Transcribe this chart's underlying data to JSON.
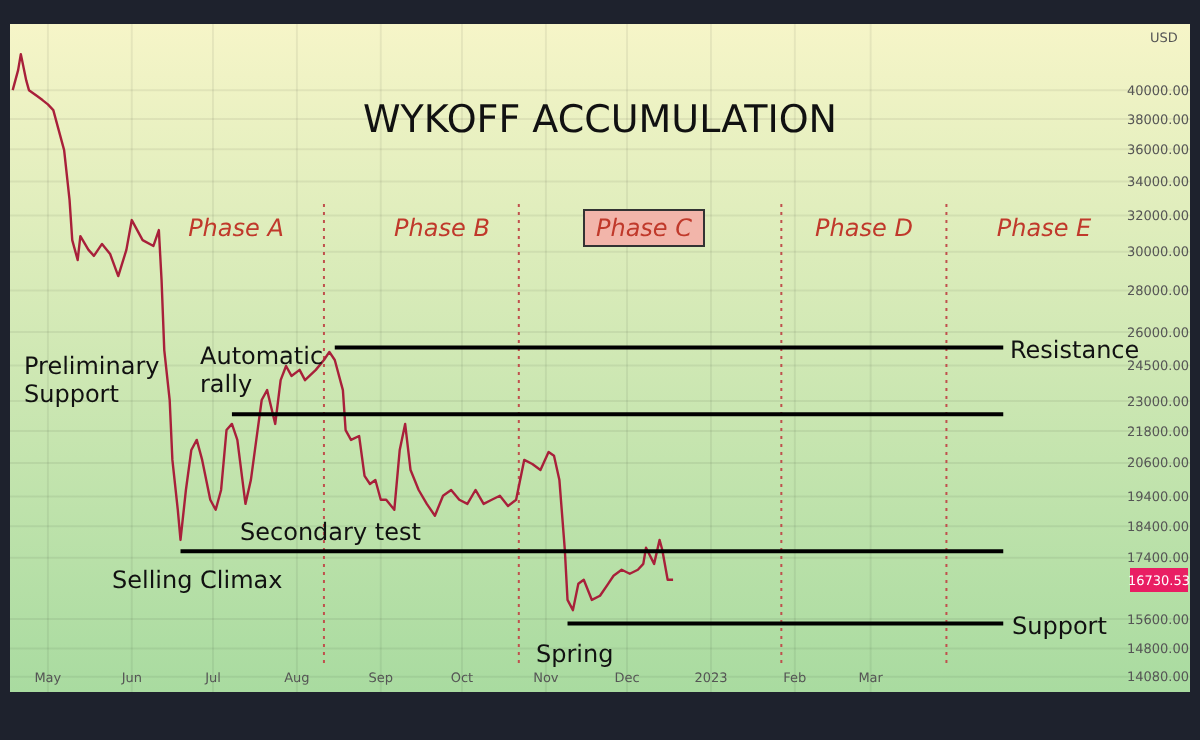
{
  "chart_data": {
    "type": "line",
    "title": "WYKOFF ACCUMULATION",
    "ylabel": "USD",
    "log": true,
    "grid": true,
    "xlim": [
      "2022-04-17",
      "2023-06-27"
    ],
    "ylim": [
      13700,
      45000
    ],
    "xticks": [
      {
        "value": "2022-05-01",
        "label": "May"
      },
      {
        "value": "2022-06-01",
        "label": "Jun"
      },
      {
        "value": "2022-07-01",
        "label": "Jul"
      },
      {
        "value": "2022-08-01",
        "label": "Aug"
      },
      {
        "value": "2022-09-01",
        "label": "Sep"
      },
      {
        "value": "2022-10-01",
        "label": "Oct"
      },
      {
        "value": "2022-11-01",
        "label": "Nov"
      },
      {
        "value": "2022-12-01",
        "label": "Dec"
      },
      {
        "value": "2023-01-01",
        "label": "2023"
      },
      {
        "value": "2023-02-01",
        "label": "Feb"
      },
      {
        "value": "2023-03-01",
        "label": "Mar"
      }
    ],
    "yticks": [
      {
        "value": 40000,
        "label": "40000.00"
      },
      {
        "value": 38000,
        "label": "38000.00"
      },
      {
        "value": 36000,
        "label": "36000.00"
      },
      {
        "value": 34000,
        "label": "34000.00"
      },
      {
        "value": 32000,
        "label": "32000.00"
      },
      {
        "value": 30000,
        "label": "30000.00"
      },
      {
        "value": 28000,
        "label": "28000.00"
      },
      {
        "value": 26000,
        "label": "26000.00"
      },
      {
        "value": 24500,
        "label": "24500.00"
      },
      {
        "value": 23000,
        "label": "23000.00"
      },
      {
        "value": 21800,
        "label": "21800.00"
      },
      {
        "value": 20600,
        "label": "20600.00"
      },
      {
        "value": 19400,
        "label": "19400.00"
      },
      {
        "value": 18400,
        "label": "18400.00"
      },
      {
        "value": 17400,
        "label": "17400.00"
      },
      {
        "value": 15600,
        "label": "15600.00"
      },
      {
        "value": 14800,
        "label": "14800.00"
      },
      {
        "value": 14080,
        "label": "14080.00"
      }
    ],
    "series": [
      {
        "color": "#a8203a",
        "x": [
          "2022-04-18",
          "2022-04-20",
          "2022-04-21",
          "2022-04-23",
          "2022-04-24",
          "2022-04-27",
          "2022-04-29",
          "2022-05-01",
          "2022-05-03",
          "2022-05-05",
          "2022-05-07",
          "2022-05-09",
          "2022-05-10",
          "2022-05-12",
          "2022-05-13",
          "2022-05-16",
          "2022-05-18",
          "2022-05-21",
          "2022-05-24",
          "2022-05-27",
          "2022-05-30",
          "2022-06-01",
          "2022-06-05",
          "2022-06-09",
          "2022-06-11",
          "2022-06-12",
          "2022-06-13",
          "2022-06-15",
          "2022-06-16",
          "2022-06-18",
          "2022-06-19",
          "2022-06-21",
          "2022-06-23",
          "2022-06-25",
          "2022-06-27",
          "2022-06-30",
          "2022-07-02",
          "2022-07-04",
          "2022-07-06",
          "2022-07-08",
          "2022-07-10",
          "2022-07-13",
          "2022-07-15",
          "2022-07-17",
          "2022-07-19",
          "2022-07-21",
          "2022-07-24",
          "2022-07-26",
          "2022-07-28",
          "2022-07-30",
          "2022-08-02",
          "2022-08-04",
          "2022-08-08",
          "2022-08-11",
          "2022-08-13",
          "2022-08-15",
          "2022-08-18",
          "2022-08-19",
          "2022-08-21",
          "2022-08-24",
          "2022-08-26",
          "2022-08-28",
          "2022-08-30",
          "2022-09-01",
          "2022-09-03",
          "2022-09-06",
          "2022-09-08",
          "2022-09-10",
          "2022-09-12",
          "2022-09-15",
          "2022-09-18",
          "2022-09-21",
          "2022-09-24",
          "2022-09-27",
          "2022-09-30",
          "2022-10-03",
          "2022-10-06",
          "2022-10-09",
          "2022-10-12",
          "2022-10-15",
          "2022-10-18",
          "2022-10-21",
          "2022-10-24",
          "2022-10-27",
          "2022-10-30",
          "2022-11-02",
          "2022-11-04",
          "2022-11-06",
          "2022-11-08",
          "2022-11-09",
          "2022-11-11",
          "2022-11-13",
          "2022-11-15",
          "2022-11-18",
          "2022-11-21",
          "2022-11-24",
          "2022-11-26",
          "2022-11-29",
          "2022-12-02",
          "2022-12-05",
          "2022-12-07",
          "2022-12-08",
          "2022-12-11",
          "2022-12-13",
          "2022-12-14",
          "2022-12-16",
          "2022-12-18"
        ],
        "values": [
          40000,
          41450,
          42650,
          40700,
          40000,
          39580,
          39300,
          39000,
          38600,
          37250,
          35950,
          32900,
          30630,
          29560,
          30840,
          30100,
          29780,
          30420,
          29880,
          28730,
          30100,
          31740,
          30630,
          30310,
          31180,
          28520,
          25180,
          23040,
          20710,
          18950,
          17960,
          19630,
          21080,
          21460,
          20710,
          19290,
          18950,
          19630,
          21840,
          22080,
          21460,
          19150,
          19980,
          21460,
          23040,
          23450,
          22080,
          23870,
          24480,
          24050,
          24310,
          23870,
          24310,
          24740,
          25100,
          24740,
          23450,
          21840,
          21460,
          21610,
          20130,
          19840,
          19980,
          19290,
          19290,
          18950,
          21080,
          22080,
          20340,
          19630,
          19150,
          18750,
          19430,
          19630,
          19290,
          19150,
          19630,
          19150,
          19290,
          19430,
          19080,
          19290,
          20710,
          20560,
          20340,
          21000,
          20860,
          19980,
          17650,
          16140,
          15850,
          16610,
          16730,
          16140,
          16260,
          16610,
          16850,
          17030,
          16910,
          17030,
          17210,
          17710,
          17210,
          17960,
          17650,
          16730,
          16730
        ]
      },
      {
        "color": "#000000",
        "x": [
          "2022-08-15",
          "2023-04-19"
        ],
        "values": [
          25300,
          25300
        ]
      },
      {
        "color": "#000000",
        "x": [
          "2022-07-08",
          "2023-04-19"
        ],
        "values": [
          22460,
          22460
        ]
      },
      {
        "color": "#000000",
        "x": [
          "2022-06-19",
          "2023-04-19"
        ],
        "values": [
          17600,
          17600
        ]
      },
      {
        "color": "#000000",
        "x": [
          "2022-11-09",
          "2023-04-19"
        ],
        "values": [
          15480,
          15480
        ]
      }
    ],
    "ref_lines": [
      {
        "axis": "x",
        "value": "2022-08-11",
        "color": "#c0504d",
        "line_style": "dotted"
      },
      {
        "axis": "x",
        "value": "2022-10-22",
        "color": "#c0504d",
        "line_style": "dotted"
      },
      {
        "axis": "x",
        "value": "2023-01-27",
        "color": "#c0504d",
        "line_style": "dotted"
      },
      {
        "axis": "x",
        "value": "2023-03-29",
        "color": "#c0504d",
        "line_style": "dotted"
      }
    ],
    "annotations": [
      "Phase A",
      "Phase B",
      "Phase C",
      "Phase D",
      "Phase E",
      "Preliminary\nSupport",
      "Automatic\nrally",
      "Secondary test",
      "Selling Climax",
      "Spring",
      "Resistance",
      "Support",
      "16730.53"
    ]
  }
}
